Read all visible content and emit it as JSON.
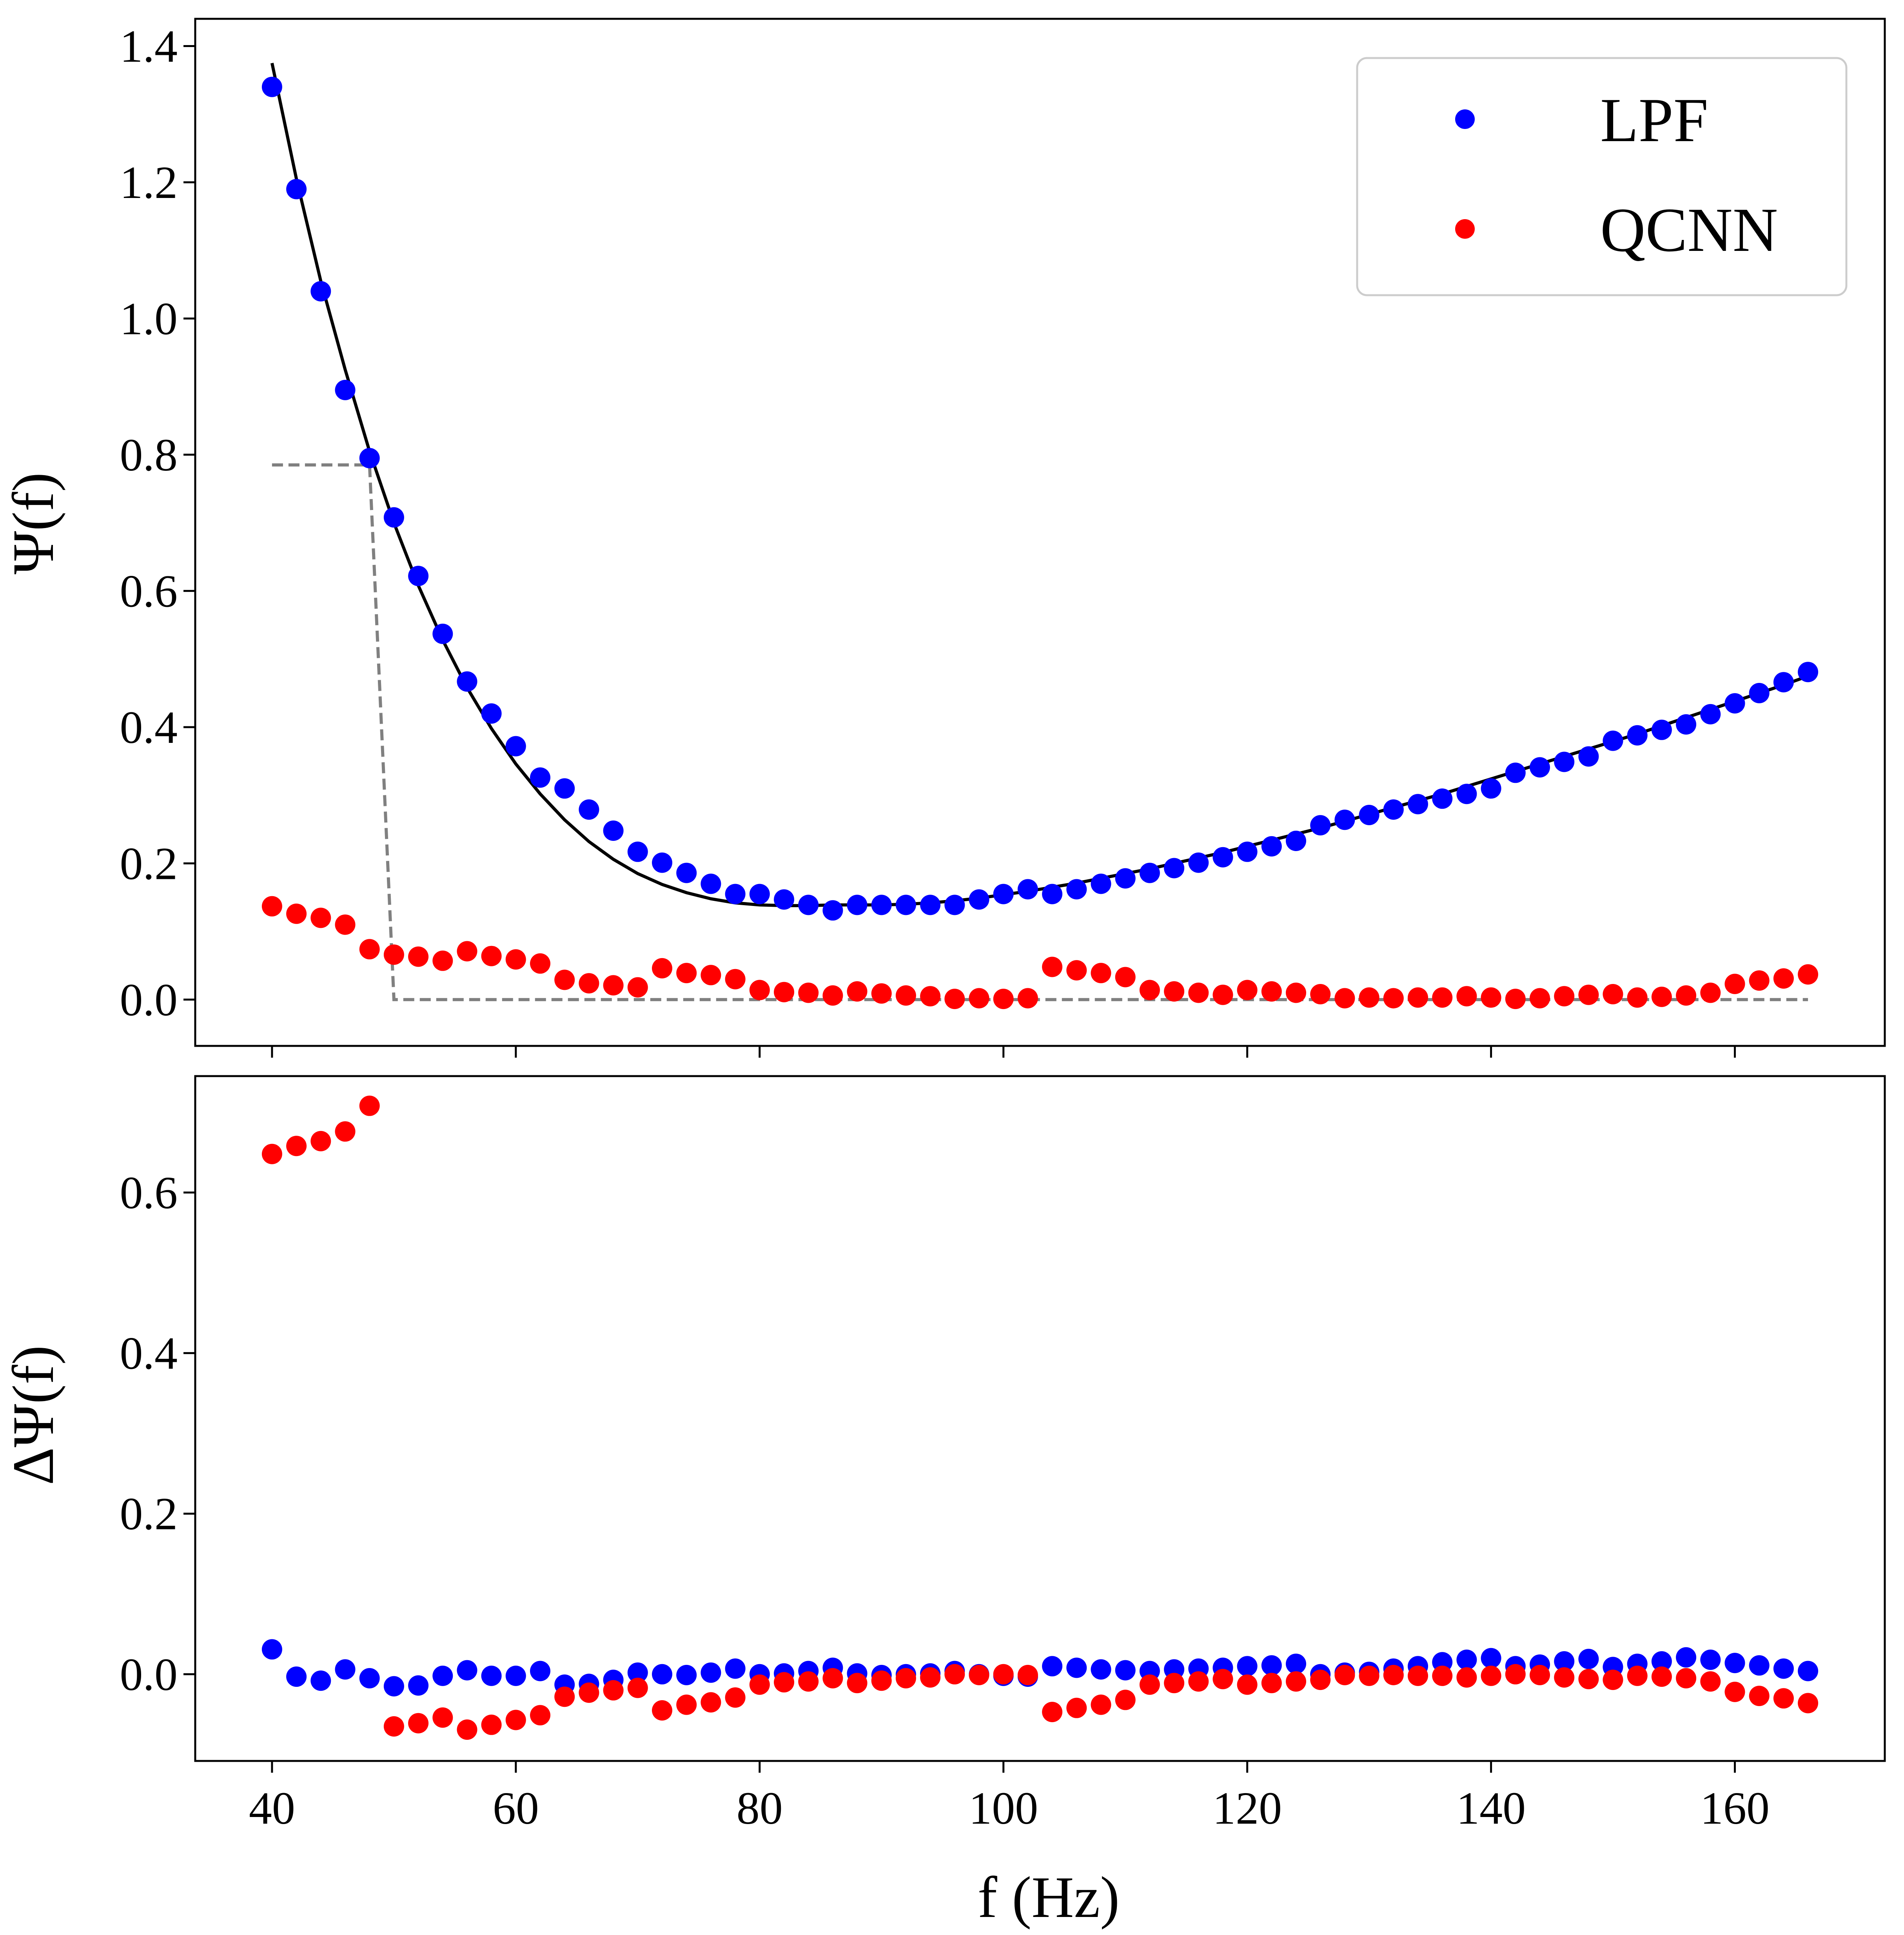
{
  "chart_data": [
    {
      "type": "scatter",
      "panel": "top",
      "xlabel": "",
      "ylabel": "Ψ(f)",
      "xlim": [
        33.7,
        172.3
      ],
      "ylim": [
        -0.068,
        1.44
      ],
      "x_ticks": [
        40,
        60,
        80,
        100,
        120,
        140,
        160
      ],
      "x_tick_labels_visible": false,
      "y_ticks": [
        0.0,
        0.2,
        0.4,
        0.6,
        0.8,
        1.0,
        1.2,
        1.4
      ],
      "y_tick_labels": [
        "0.0",
        "0.2",
        "0.4",
        "0.6",
        "0.8",
        "1.0",
        "1.2",
        "1.4"
      ],
      "grid": false,
      "legend": {
        "placement": "top-right",
        "entries": [
          "LPF",
          "QCNN"
        ]
      },
      "series": [
        {
          "name": "LPF",
          "kind": "points",
          "color": "#0000ff",
          "x": [
            40,
            42,
            44,
            46,
            48,
            50,
            52,
            54,
            56,
            58,
            60,
            62,
            64,
            66,
            68,
            70,
            72,
            74,
            76,
            78,
            80,
            82,
            84,
            86,
            88,
            90,
            92,
            94,
            96,
            98,
            100,
            102,
            104,
            106,
            108,
            110,
            112,
            114,
            116,
            118,
            120,
            122,
            124,
            126,
            128,
            130,
            132,
            134,
            136,
            138,
            140,
            142,
            144,
            146,
            148,
            150,
            152,
            154,
            156,
            158,
            160,
            162,
            164,
            166
          ],
          "y": [
            1.34,
            1.19,
            1.04,
            0.895,
            0.795,
            0.708,
            0.622,
            0.537,
            0.467,
            0.42,
            0.372,
            0.326,
            0.31,
            0.279,
            0.248,
            0.217,
            0.201,
            0.186,
            0.17,
            0.155,
            0.155,
            0.147,
            0.139,
            0.131,
            0.139,
            0.139,
            0.139,
            0.139,
            0.139,
            0.147,
            0.155,
            0.162,
            0.155,
            0.162,
            0.17,
            0.178,
            0.186,
            0.193,
            0.201,
            0.209,
            0.217,
            0.225,
            0.233,
            0.256,
            0.264,
            0.271,
            0.279,
            0.287,
            0.295,
            0.302,
            0.31,
            0.333,
            0.341,
            0.349,
            0.357,
            0.38,
            0.388,
            0.396,
            0.404,
            0.419,
            0.435,
            0.45,
            0.466,
            0.481
          ]
        },
        {
          "name": "QCNN",
          "kind": "points",
          "color": "#ff0000",
          "x": [
            40,
            42,
            44,
            46,
            48,
            50,
            52,
            54,
            56,
            58,
            60,
            62,
            64,
            66,
            68,
            70,
            72,
            74,
            76,
            78,
            80,
            82,
            84,
            86,
            88,
            90,
            92,
            94,
            96,
            98,
            100,
            102,
            104,
            106,
            108,
            110,
            112,
            114,
            116,
            118,
            120,
            122,
            124,
            126,
            128,
            130,
            132,
            134,
            136,
            138,
            140,
            142,
            144,
            146,
            148,
            150,
            152,
            154,
            156,
            158,
            160,
            162,
            164,
            166
          ],
          "y": [
            0.137,
            0.126,
            0.12,
            0.11,
            0.074,
            0.066,
            0.063,
            0.057,
            0.071,
            0.064,
            0.059,
            0.053,
            0.029,
            0.024,
            0.021,
            0.018,
            0.046,
            0.039,
            0.036,
            0.03,
            0.014,
            0.011,
            0.01,
            0.006,
            0.012,
            0.009,
            0.006,
            0.005,
            0.001,
            0.002,
            0.001,
            0.002,
            0.048,
            0.043,
            0.039,
            0.033,
            0.014,
            0.012,
            0.01,
            0.007,
            0.014,
            0.012,
            0.01,
            0.008,
            0.002,
            0.003,
            0.002,
            0.003,
            0.003,
            0.005,
            0.003,
            0.001,
            0.002,
            0.005,
            0.007,
            0.008,
            0.003,
            0.004,
            0.006,
            0.01,
            0.023,
            0.028,
            0.031,
            0.037
          ]
        },
        {
          "kind": "line",
          "style": "solid",
          "color": "#000000",
          "x": [
            40,
            42,
            44,
            46,
            48,
            50,
            52,
            54,
            56,
            58,
            60,
            62,
            64,
            66,
            68,
            70,
            72,
            74,
            76,
            78,
            80,
            82,
            84,
            86,
            88,
            90,
            92,
            94,
            96,
            98,
            100,
            102,
            104,
            106,
            108,
            110,
            112,
            114,
            116,
            118,
            120,
            122,
            124,
            126,
            128,
            130,
            132,
            134,
            136,
            138,
            140,
            142,
            144,
            146,
            148,
            150,
            152,
            154,
            156,
            158,
            160,
            162,
            164,
            166
          ],
          "y": [
            1.375,
            1.205,
            1.055,
            0.925,
            0.805,
            0.7,
            0.608,
            0.528,
            0.458,
            0.398,
            0.346,
            0.302,
            0.264,
            0.232,
            0.206,
            0.185,
            0.169,
            0.157,
            0.148,
            0.142,
            0.139,
            0.138,
            0.138,
            0.139,
            0.139,
            0.139,
            0.14,
            0.142,
            0.145,
            0.149,
            0.154,
            0.159,
            0.165,
            0.171,
            0.178,
            0.185,
            0.192,
            0.2,
            0.208,
            0.216,
            0.225,
            0.234,
            0.243,
            0.252,
            0.262,
            0.272,
            0.282,
            0.292,
            0.302,
            0.313,
            0.324,
            0.335,
            0.346,
            0.357,
            0.368,
            0.379,
            0.39,
            0.402,
            0.414,
            0.426,
            0.438,
            0.45,
            0.462,
            0.475
          ]
        },
        {
          "kind": "line",
          "style": "dashed",
          "color": "#808080",
          "x": [
            40,
            48,
            50,
            166
          ],
          "y": [
            0.785,
            0.785,
            0.0,
            0.0
          ]
        }
      ]
    },
    {
      "type": "scatter",
      "panel": "bottom",
      "xlabel": "f (Hz)",
      "ylabel": "ΔΨ(f)",
      "xlim": [
        33.7,
        172.3
      ],
      "ylim": [
        -0.108,
        0.745
      ],
      "x_ticks": [
        40,
        60,
        80,
        100,
        120,
        140,
        160
      ],
      "x_tick_labels": [
        "40",
        "60",
        "80",
        "100",
        "120",
        "140",
        "160"
      ],
      "y_ticks": [
        0.0,
        0.2,
        0.4,
        0.6
      ],
      "y_tick_labels": [
        "0.0",
        "0.2",
        "0.4",
        "0.6"
      ],
      "grid": false,
      "series": [
        {
          "name": "LPF",
          "kind": "points",
          "color": "#0000ff",
          "x": [
            40,
            42,
            44,
            46,
            48,
            50,
            52,
            54,
            56,
            58,
            60,
            62,
            64,
            66,
            68,
            70,
            72,
            74,
            76,
            78,
            80,
            82,
            84,
            86,
            88,
            90,
            92,
            94,
            96,
            98,
            100,
            102,
            104,
            106,
            108,
            110,
            112,
            114,
            116,
            118,
            120,
            122,
            124,
            126,
            128,
            130,
            132,
            134,
            136,
            138,
            140,
            142,
            144,
            146,
            148,
            150,
            152,
            154,
            156,
            158,
            160,
            162,
            164,
            166
          ],
          "y": [
            0.031,
            -0.003,
            -0.008,
            0.006,
            -0.005,
            -0.015,
            -0.014,
            -0.002,
            0.005,
            -0.002,
            -0.002,
            0.004,
            -0.013,
            -0.012,
            -0.007,
            0.002,
            0.0,
            -0.001,
            0.002,
            0.007,
            0.0,
            0.001,
            0.004,
            0.008,
            0.001,
            -0.001,
            0.0,
            0.001,
            0.004,
            0.0,
            -0.002,
            -0.003,
            0.01,
            0.008,
            0.006,
            0.005,
            0.004,
            0.006,
            0.007,
            0.008,
            0.01,
            0.011,
            0.013,
            0.0,
            0.002,
            0.003,
            0.007,
            0.01,
            0.015,
            0.018,
            0.02,
            0.01,
            0.012,
            0.016,
            0.019,
            0.009,
            0.013,
            0.016,
            0.021,
            0.018,
            0.014,
            0.011,
            0.007,
            0.004
          ]
        },
        {
          "name": "QCNN",
          "kind": "points",
          "color": "#ff0000",
          "x": [
            40,
            42,
            44,
            46,
            48,
            50,
            52,
            54,
            56,
            58,
            60,
            62,
            64,
            66,
            68,
            70,
            72,
            74,
            76,
            78,
            80,
            82,
            84,
            86,
            88,
            90,
            92,
            94,
            96,
            98,
            100,
            102,
            104,
            106,
            108,
            110,
            112,
            114,
            116,
            118,
            120,
            122,
            124,
            126,
            128,
            130,
            132,
            134,
            136,
            138,
            140,
            142,
            144,
            146,
            148,
            150,
            152,
            154,
            156,
            158,
            160,
            162,
            164,
            166
          ],
          "y": [
            0.648,
            0.658,
            0.664,
            0.676,
            0.708,
            -0.065,
            -0.061,
            -0.054,
            -0.069,
            -0.063,
            -0.057,
            -0.051,
            -0.028,
            -0.023,
            -0.02,
            -0.017,
            -0.045,
            -0.038,
            -0.035,
            -0.029,
            -0.013,
            -0.01,
            -0.009,
            -0.005,
            -0.011,
            -0.008,
            -0.005,
            -0.004,
            0.0,
            -0.001,
            0.0,
            -0.001,
            -0.047,
            -0.042,
            -0.038,
            -0.032,
            -0.013,
            -0.011,
            -0.009,
            -0.006,
            -0.013,
            -0.011,
            -0.009,
            -0.007,
            -0.001,
            -0.002,
            -0.001,
            -0.002,
            -0.002,
            -0.004,
            -0.002,
            0.0,
            -0.001,
            -0.004,
            -0.006,
            -0.007,
            -0.002,
            -0.003,
            -0.005,
            -0.009,
            -0.022,
            -0.027,
            -0.03,
            -0.036
          ]
        }
      ]
    }
  ]
}
